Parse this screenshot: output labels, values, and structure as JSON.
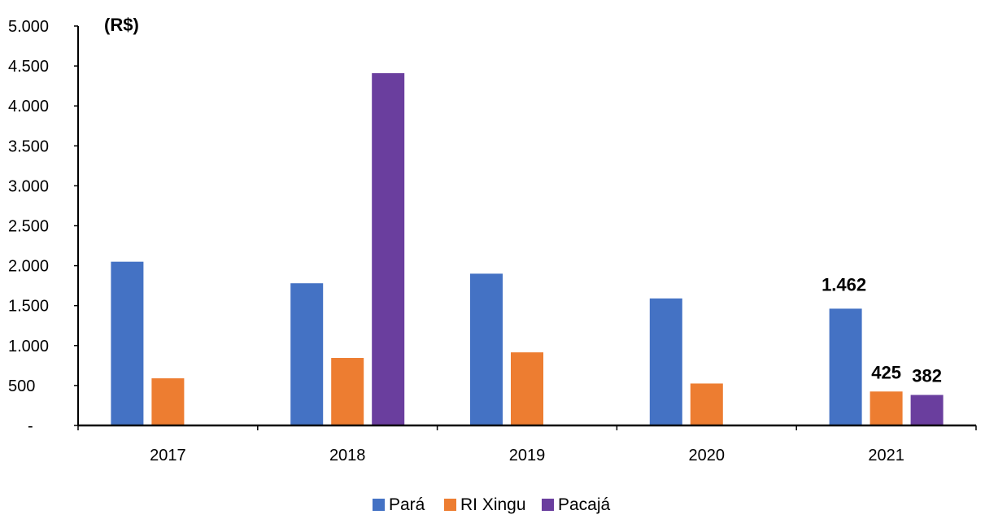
{
  "chart_data": {
    "type": "bar",
    "unit_label": "(R$)",
    "categories": [
      "2017",
      "2018",
      "2019",
      "2020",
      "2021"
    ],
    "series": [
      {
        "name": "Pará",
        "color": "#4472C4",
        "values": [
          2050,
          1780,
          1900,
          1590,
          1462
        ]
      },
      {
        "name": "RI Xingu",
        "color": "#ED7D31",
        "values": [
          590,
          845,
          915,
          525,
          425
        ]
      },
      {
        "name": "Pacajá",
        "color": "#6A3E9E",
        "values": [
          null,
          4410,
          null,
          null,
          382
        ]
      }
    ],
    "data_labels": [
      {
        "series": "Pará",
        "category": "2021",
        "text": "1.462"
      },
      {
        "series": "RI Xingu",
        "category": "2021",
        "text": "425"
      },
      {
        "series": "Pacajá",
        "category": "2021",
        "text": "382"
      }
    ],
    "ylim": [
      0,
      5000
    ],
    "yticks": [
      {
        "value": 0,
        "label": "-"
      },
      {
        "value": 500,
        "label": "500"
      },
      {
        "value": 1000,
        "label": "1.000"
      },
      {
        "value": 1500,
        "label": "1.500"
      },
      {
        "value": 2000,
        "label": "2.000"
      },
      {
        "value": 2500,
        "label": "2.500"
      },
      {
        "value": 3000,
        "label": "3.000"
      },
      {
        "value": 3500,
        "label": "3.500"
      },
      {
        "value": 4000,
        "label": "4.000"
      },
      {
        "value": 4500,
        "label": "4.500"
      },
      {
        "value": 5000,
        "label": "5.000"
      }
    ],
    "grid": false,
    "legend_position": "bottom-center"
  }
}
